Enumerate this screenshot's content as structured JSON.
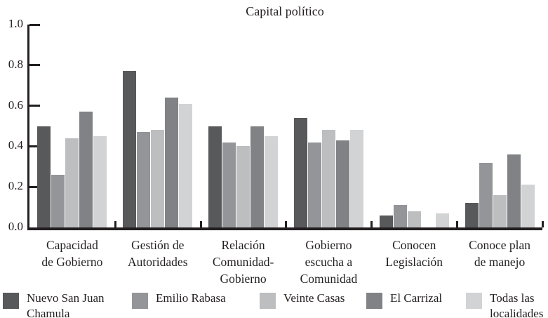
{
  "colors": {
    "axis": "#231F20",
    "text": "#231F20",
    "background": "#FFFFFF"
  },
  "chart_data": {
    "type": "bar",
    "title": "Capital político",
    "categories": [
      "Capacidad de Gobierno",
      "Gestión de Autoridades",
      "Relación Comunidad-Gobierno",
      "Gobierno escucha a Comunidad",
      "Conocen Legislación",
      "Conoce plan de manejo"
    ],
    "categories_lines": [
      [
        "Capacidad",
        "de Gobierno"
      ],
      [
        "Gestión de",
        "Autoridades"
      ],
      [
        "Relación",
        "Comunidad-",
        "Gobierno"
      ],
      [
        "Gobierno",
        "escucha a",
        "Comunidad"
      ],
      [
        "Conocen",
        "Legislación"
      ],
      [
        "Conoce plan",
        "de manejo"
      ]
    ],
    "series": [
      {
        "name": "Nuevo San Juan Chamula",
        "name_lines": [
          "Nuevo San Juan",
          "Chamula"
        ],
        "color": "#58595B",
        "values": [
          0.5,
          0.77,
          0.5,
          0.54,
          0.06,
          0.12
        ]
      },
      {
        "name": "Emilio Rabasa",
        "name_lines": [
          "Emilio Rabasa"
        ],
        "color": "#939598",
        "values": [
          0.26,
          0.47,
          0.42,
          0.42,
          0.11,
          0.32
        ]
      },
      {
        "name": "Veinte Casas",
        "name_lines": [
          "Veinte Casas"
        ],
        "color": "#BCBEC0",
        "values": [
          0.44,
          0.48,
          0.4,
          0.48,
          0.08,
          0.16
        ]
      },
      {
        "name": "El Carrizal",
        "name_lines": [
          "El Carrizal"
        ],
        "color": "#808285",
        "values": [
          0.57,
          0.64,
          0.5,
          0.43,
          0.0,
          0.36
        ]
      },
      {
        "name": "Todas las localidades",
        "name_lines": [
          "Todas las",
          "localidades"
        ],
        "color": "#D1D3D4",
        "values": [
          0.45,
          0.61,
          0.45,
          0.48,
          0.07,
          0.21
        ]
      }
    ],
    "ylim": [
      0.0,
      1.0
    ],
    "ytick_labels": [
      "1.0",
      "0.8",
      "0.6",
      "0.4",
      "0.2",
      "0.0"
    ],
    "xlabel": "",
    "ylabel": "",
    "grid": false,
    "legend_position": "bottom"
  }
}
